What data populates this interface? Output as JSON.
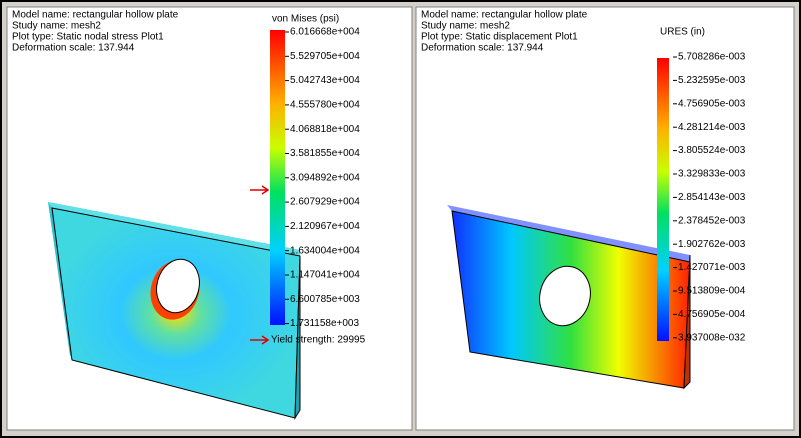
{
  "panels": [
    {
      "info": [
        "Model name: rectangular hollow plate",
        "Study name: mesh2",
        "Plot type: Static nodal stress Plot1",
        "Deformation scale: 137.944"
      ],
      "legend": {
        "title": "von Mises (psi)",
        "labels": [
          "6.016668e+004",
          "5.529705e+004",
          "5.042743e+004",
          "4.555780e+004",
          "4.068818e+004",
          "3.581855e+004",
          "3.094892e+004",
          "2.607929e+004",
          "2.120967e+004",
          "1.634004e+004",
          "1.147041e+004",
          "6.600785e+003",
          "1.731158e+003"
        ]
      },
      "yield_label": "Yield strength: 29995"
    },
    {
      "info": [
        "Model name: rectangular hollow plate",
        "Study name: mesh2",
        "Plot type: Static displacement Plot1",
        "Deformation scale: 137.944"
      ],
      "legend": {
        "title": "URES (in)",
        "labels": [
          "5.708286e-003",
          "5.232595e-003",
          "4.756905e-003",
          "4.281214e-003",
          "3.805524e-003",
          "3.329833e-003",
          "2.854143e-003",
          "2.378452e-003",
          "1.902762e-003",
          "1.427071e-003",
          "9.513809e-004",
          "4.756905e-004",
          "3.937008e-032"
        ]
      }
    }
  ]
}
